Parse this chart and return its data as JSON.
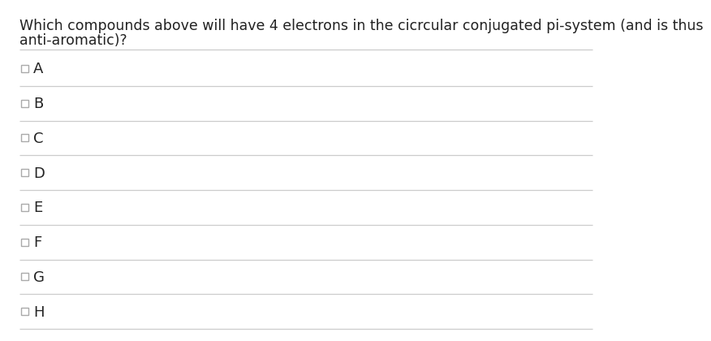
{
  "question_line1": "Which compounds above will have 4 electrons in the cicrcular conjugated pi-system (and is thus",
  "question_line2": "anti-aromatic)?",
  "options": [
    "A",
    "B",
    "C",
    "D",
    "E",
    "F",
    "G",
    "H"
  ],
  "bg_color": "#ffffff",
  "text_color": "#222222",
  "line_color": "#cccccc",
  "question_fontsize": 12.5,
  "option_fontsize": 13,
  "checkbox_size": 9,
  "checkbox_color": "#aaaaaa",
  "checkbox_lw": 1.0
}
